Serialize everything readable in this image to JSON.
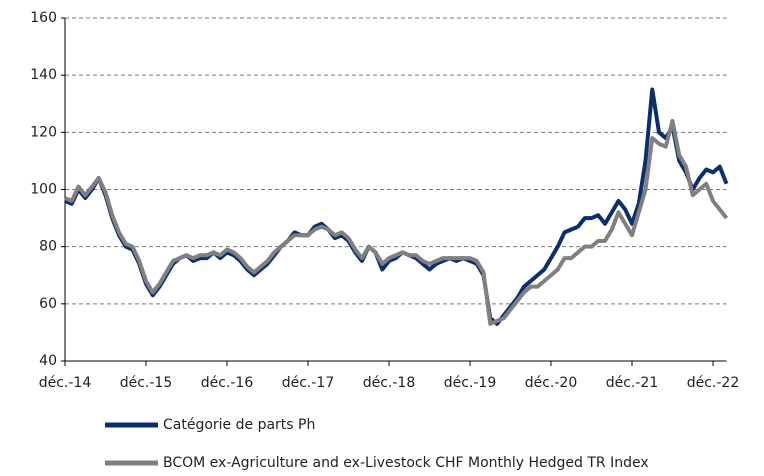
{
  "chart_data": {
    "type": "line",
    "categories": [
      "déc.-14",
      null,
      null,
      null,
      null,
      null,
      null,
      null,
      null,
      null,
      null,
      null,
      "déc.-15",
      null,
      null,
      null,
      null,
      null,
      null,
      null,
      null,
      null,
      null,
      null,
      "déc.-16",
      null,
      null,
      null,
      null,
      null,
      null,
      null,
      null,
      null,
      null,
      null,
      "déc.-17",
      null,
      null,
      null,
      null,
      null,
      null,
      null,
      null,
      null,
      null,
      null,
      "déc.-18",
      null,
      null,
      null,
      null,
      null,
      null,
      null,
      null,
      null,
      null,
      null,
      "déc.-19",
      null,
      null,
      null,
      null,
      null,
      null,
      null,
      null,
      null,
      null,
      null,
      "déc.-20",
      null,
      null,
      null,
      null,
      null,
      null,
      null,
      null,
      null,
      null,
      null,
      "déc.-21",
      null,
      null,
      null,
      null,
      null,
      null,
      null,
      null,
      null,
      null,
      null,
      "déc.-22",
      null,
      null
    ],
    "series": [
      {
        "name": "Catégorie de parts Ph",
        "color": "#0b2f6b",
        "values": [
          96,
          95,
          100,
          97,
          100,
          104,
          98,
          90,
          84,
          80,
          79,
          74,
          67,
          63,
          66,
          70,
          74,
          76,
          77,
          75,
          76,
          76,
          78,
          76,
          78,
          77,
          75,
          72,
          70,
          72,
          74,
          77,
          80,
          82,
          85,
          84,
          84,
          87,
          88,
          86,
          83,
          84,
          82,
          78,
          75,
          80,
          78,
          72,
          75,
          76,
          78,
          77,
          76,
          74,
          72,
          74,
          75,
          76,
          75,
          76,
          75,
          74,
          70,
          55,
          53,
          56,
          59,
          62,
          66,
          68,
          70,
          72,
          76,
          80,
          85,
          86,
          87,
          90,
          90,
          91,
          88,
          92,
          96,
          93,
          88,
          95,
          110,
          135,
          120,
          118,
          122,
          110,
          106,
          100,
          104,
          107,
          106,
          108,
          102
        ]
      },
      {
        "name": "BCOM ex-Agriculture and ex-Livestock CHF Monthly Hedged TR Index",
        "color": "#808080",
        "values": [
          97,
          96,
          101,
          98,
          101,
          104,
          99,
          91,
          85,
          81,
          80,
          75,
          68,
          64,
          67,
          71,
          75,
          76,
          77,
          76,
          77,
          77,
          78,
          77,
          79,
          78,
          76,
          73,
          71,
          73,
          75,
          78,
          80,
          82,
          84,
          84,
          84,
          86,
          87,
          86,
          84,
          85,
          83,
          79,
          76,
          80,
          78,
          74,
          76,
          77,
          78,
          77,
          77,
          75,
          74,
          75,
          76,
          76,
          76,
          76,
          76,
          75,
          71,
          53,
          54,
          55,
          58,
          61,
          64,
          66,
          66,
          68,
          70,
          72,
          76,
          76,
          78,
          80,
          80,
          82,
          82,
          86,
          92,
          88,
          84,
          92,
          100,
          118,
          116,
          115,
          124,
          112,
          108,
          98,
          100,
          102,
          96,
          93,
          90
        ]
      }
    ],
    "ylim": [
      40,
      160
    ],
    "yticks": [
      40,
      60,
      80,
      100,
      120,
      140,
      160
    ],
    "grid": true
  }
}
